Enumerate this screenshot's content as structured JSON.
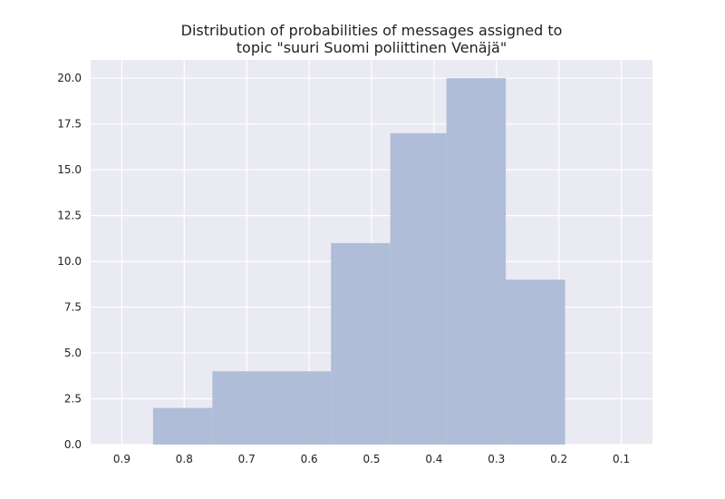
{
  "chart_data": {
    "type": "bar",
    "title_lines": [
      "Distribution of probabilities of messages assigned to",
      "topic \"suuri Suomi poliittinen Venäjä\""
    ],
    "xlabel": "",
    "ylabel": "",
    "x_axis_inverted": true,
    "xlim": [
      0.95,
      0.05
    ],
    "ylim": [
      0,
      21
    ],
    "x_ticks": [
      0.9,
      0.8,
      0.7,
      0.6,
      0.5,
      0.4,
      0.3,
      0.2,
      0.1
    ],
    "x_tick_labels": [
      "0.9",
      "0.8",
      "0.7",
      "0.6",
      "0.5",
      "0.4",
      "0.3",
      "0.2",
      "0.1"
    ],
    "y_ticks": [
      0,
      2.5,
      5,
      7.5,
      10,
      12.5,
      15,
      17.5,
      20
    ],
    "y_tick_labels": [
      "0.0",
      "2.5",
      "5.0",
      "7.5",
      "10.0",
      "12.5",
      "15.0",
      "17.5",
      "20.0"
    ],
    "grid": true,
    "bin_edges": [
      0.85,
      0.755,
      0.565,
      0.47,
      0.38,
      0.285,
      0.19
    ],
    "values": [
      2,
      4,
      11,
      17,
      20,
      9
    ],
    "colors": {
      "bar": "#a9b8d6",
      "background": "#eaeaf2",
      "grid": "#ffffff",
      "text": "#222222"
    }
  }
}
